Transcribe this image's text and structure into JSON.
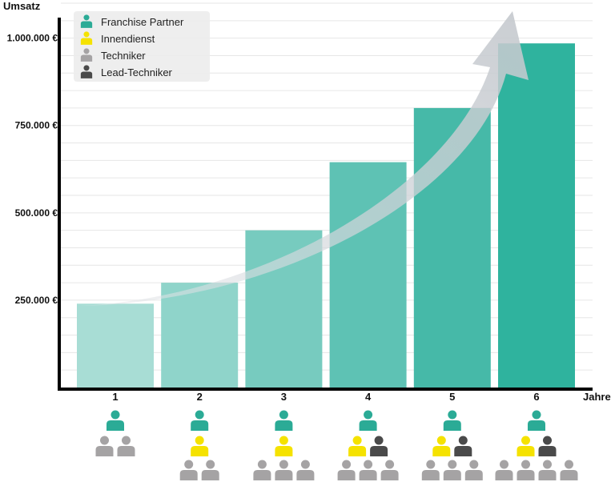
{
  "chart_data": {
    "type": "bar",
    "ylabel": "Umsatz",
    "xlabel": "Jahre",
    "categories": [
      "1",
      "2",
      "3",
      "4",
      "5",
      "6"
    ],
    "values": [
      240000,
      300000,
      450000,
      645000,
      800000,
      985000
    ],
    "ylim": [
      0,
      1100000
    ],
    "yticks": [
      250000,
      500000,
      750000,
      1000000
    ],
    "ytick_labels": [
      "250.000 €",
      "500.000 €",
      "750.000 €",
      "1.000.000 €"
    ],
    "bar_colors": [
      "#a8ddd5",
      "#8fd4ca",
      "#77cbbf",
      "#5ec2b4",
      "#46b9a8",
      "#2fb39e"
    ],
    "grid": true,
    "legend_position": "top-left",
    "trend_arrow": true
  },
  "legend": [
    {
      "label": "Franchise Partner",
      "color": "#2bab96",
      "icon": "person-icon"
    },
    {
      "label": "Innendienst",
      "color": "#f5e200",
      "icon": "person-icon"
    },
    {
      "label": "Techniker",
      "color": "#a5a3a4",
      "icon": "person-icon"
    },
    {
      "label": "Lead-Techniker",
      "color": "#4a4a4a",
      "icon": "person-icon"
    }
  ],
  "team_rows": [
    [
      [
        "franchise"
      ],
      [
        "techniker",
        "techniker"
      ]
    ],
    [
      [
        "franchise"
      ],
      [
        "innendienst"
      ],
      [
        "techniker",
        "techniker"
      ]
    ],
    [
      [
        "franchise"
      ],
      [
        "innendienst"
      ],
      [
        "techniker",
        "techniker",
        "techniker"
      ]
    ],
    [
      [
        "franchise"
      ],
      [
        "innendienst",
        "lead"
      ],
      [
        "techniker",
        "techniker",
        "techniker"
      ]
    ],
    [
      [
        "franchise"
      ],
      [
        "innendienst",
        "lead"
      ],
      [
        "techniker",
        "techniker",
        "techniker"
      ]
    ],
    [
      [
        "franchise"
      ],
      [
        "innendienst",
        "lead"
      ],
      [
        "techniker",
        "techniker",
        "techniker",
        "techniker"
      ]
    ]
  ],
  "role_colors": {
    "franchise": "#2bab96",
    "innendienst": "#f5e200",
    "techniker": "#a5a3a4",
    "lead": "#4a4a4a"
  }
}
